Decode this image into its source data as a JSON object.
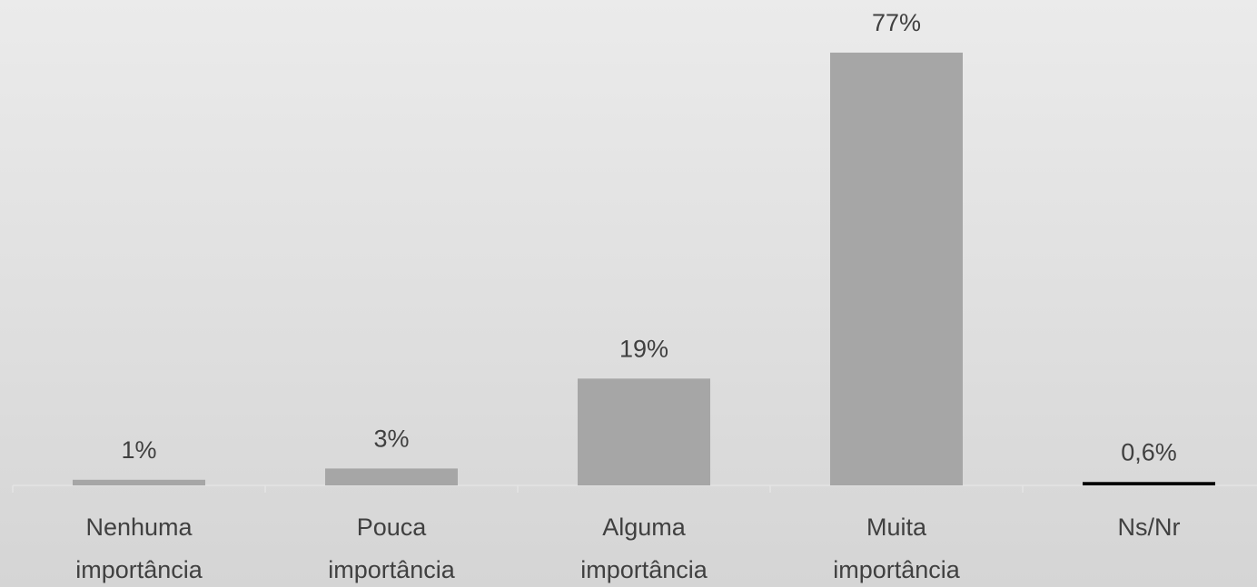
{
  "chart_data": {
    "type": "bar",
    "categories": [
      "Nenhuma importância",
      "Pouca importância",
      "Alguma importância",
      "Muita importância",
      "Ns/Nr"
    ],
    "values": [
      1,
      3,
      19,
      77,
      0.6
    ],
    "value_labels": [
      "1%",
      "3%",
      "19%",
      "77%",
      "0,6%"
    ],
    "colors": [
      "#a6a6a6",
      "#a6a6a6",
      "#a6a6a6",
      "#a6a6a6",
      "#000000"
    ]
  }
}
